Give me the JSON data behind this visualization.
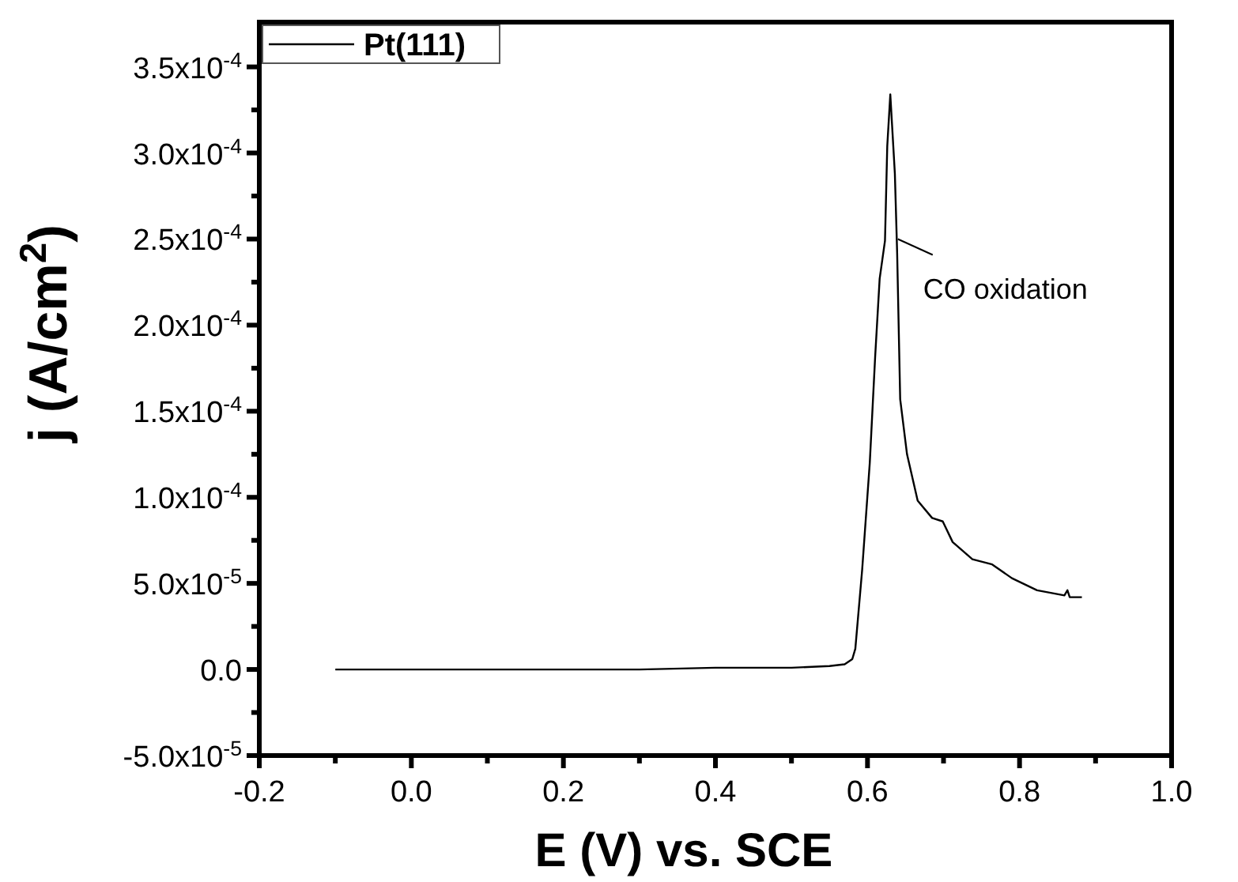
{
  "chart_data": {
    "type": "line",
    "xlabel": "E (V) vs. SCE",
    "ylabel": "j (A/cm$^{2}$)",
    "legend": "top left",
    "grid": false,
    "xlim": [
      -0.2,
      1.0
    ],
    "ylim": [
      -5e-05,
      0.000376
    ],
    "xticks": [
      {
        "value": -0.2,
        "label": "-0.2"
      },
      {
        "value": -0.1,
        "label": null
      },
      {
        "value": 0,
        "label": "0.0"
      },
      {
        "value": 0.1,
        "label": null
      },
      {
        "value": 0.2,
        "label": "0.2"
      },
      {
        "value": 0.3,
        "label": null
      },
      {
        "value": 0.4,
        "label": "0.4"
      },
      {
        "value": 0.5,
        "label": null
      },
      {
        "value": 0.6,
        "label": "0.6"
      },
      {
        "value": 0.7,
        "label": null
      },
      {
        "value": 0.8,
        "label": "0.8"
      },
      {
        "value": 0.9,
        "label": null
      },
      {
        "value": 1.0,
        "label": "1.0"
      }
    ],
    "yticks": [
      {
        "value": -5e-05,
        "label": "-5.0x10$^{-5}$"
      },
      {
        "value": -2.5e-05,
        "label": null
      },
      {
        "value": 0,
        "label": "0.0"
      },
      {
        "value": 2.5e-05,
        "label": null
      },
      {
        "value": 5e-05,
        "label": "5.0x10$^{-5}$"
      },
      {
        "value": 7.5e-05,
        "label": null
      },
      {
        "value": 0.0001,
        "label": "1.0x10$^{-4}$"
      },
      {
        "value": 0.000125,
        "label": null
      },
      {
        "value": 0.00015,
        "label": "1.5x10$^{-4}$"
      },
      {
        "value": 0.000175,
        "label": null
      },
      {
        "value": 0.0002,
        "label": "2.0x10$^{-4}$"
      },
      {
        "value": 0.000225,
        "label": null
      },
      {
        "value": 0.00025,
        "label": "2.5x10$^{-4}$"
      },
      {
        "value": 0.000275,
        "label": null
      },
      {
        "value": 0.0003,
        "label": "3.0x10$^{-4}$"
      },
      {
        "value": 0.000325,
        "label": null
      },
      {
        "value": 0.00035,
        "label": "3.5x10$^{-4}$"
      }
    ],
    "annotations": [
      {
        "text": "CO oxidation",
        "x": 0.64,
        "y": 0.00025
      }
    ],
    "series": [
      {
        "name": "Pt(111)",
        "color": "#000000",
        "x": [
          -0.1,
          0.1,
          0.3,
          0.4,
          0.5,
          0.55,
          0.57,
          0.58,
          0.584,
          0.593,
          0.603,
          0.61,
          0.616,
          0.623,
          0.626,
          0.63,
          0.636,
          0.639,
          0.643,
          0.652,
          0.666,
          0.685,
          0.699,
          0.712,
          0.738,
          0.764,
          0.79,
          0.823,
          0.859,
          0.863,
          0.866,
          0.882
        ],
        "values": [
          0,
          0,
          0,
          1e-06,
          1e-06,
          2e-06,
          3e-06,
          6e-06,
          1.2e-05,
          5.8e-05,
          0.00012,
          0.000181,
          0.000227,
          0.000249,
          0.000304,
          0.000334,
          0.000288,
          0.000242,
          0.000157,
          0.000125,
          9.8e-05,
          8.8e-05,
          8.6e-05,
          7.4e-05,
          6.4e-05,
          6.1e-05,
          5.3e-05,
          4.6e-05,
          4.3e-05,
          4.6e-05,
          4.2e-05,
          4.2e-05
        ]
      }
    ]
  }
}
